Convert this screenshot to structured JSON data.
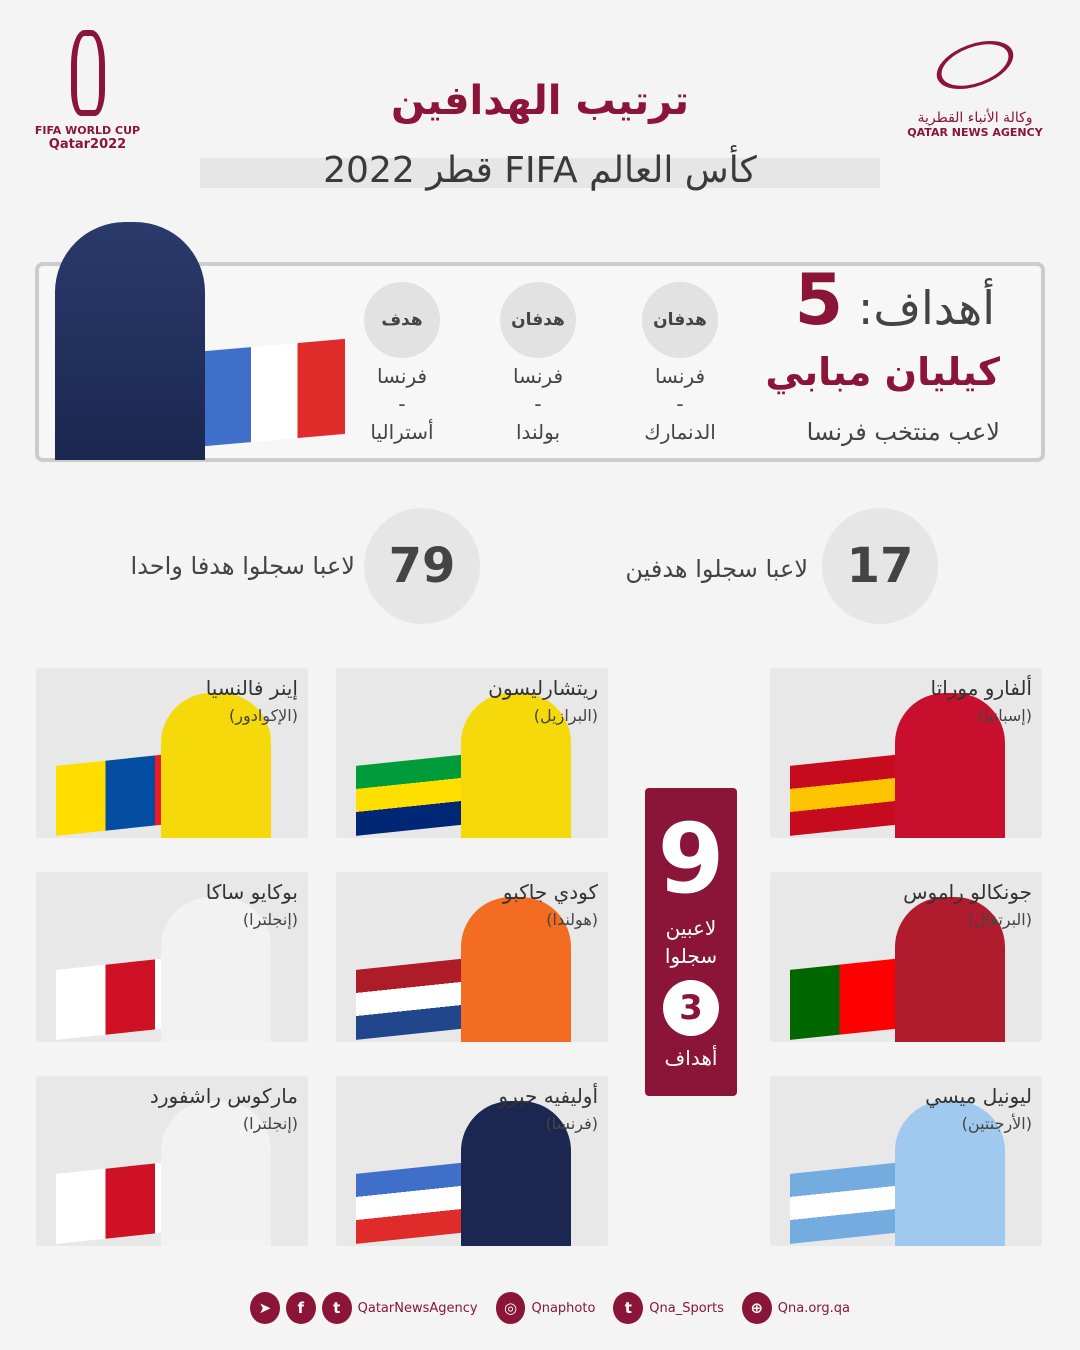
{
  "header": {
    "title": "ترتيب الهدافين",
    "subtitle": "كأس العالم FIFA قطر 2022"
  },
  "logos": {
    "fifa": {
      "line1": "FIFA WORLD CUP",
      "line2": "Qatar2022"
    },
    "qna": {
      "arabic": "وكالة الأنباء القطرية",
      "english": "QATAR NEWS AGENCY"
    }
  },
  "top_scorer": {
    "goals_prefix": "أهداف:",
    "goals": "5",
    "name": "كيليان مبابي",
    "team": "لاعب منتخب فرنسا",
    "matches": [
      {
        "goals": "هدفان",
        "team": "فرنسا",
        "sep": "-",
        "opponent": "الدنمارك"
      },
      {
        "goals": "هدفان",
        "team": "فرنسا",
        "sep": "-",
        "opponent": "بولندا"
      },
      {
        "goals": "هدف",
        "team": "فرنسا",
        "sep": "-",
        "opponent": "أستراليا"
      }
    ]
  },
  "stats": [
    {
      "value": "17",
      "label": "لاعبا سجلوا هدفين"
    },
    {
      "value": "79",
      "label": "لاعبا سجلوا هدفا واحدا"
    }
  ],
  "badge": {
    "count": "9",
    "line1": "لاعبين",
    "line2": "سجلوا",
    "goals": "3",
    "line3": "أهداف"
  },
  "players": [
    {
      "name": "ألفارو موراتا",
      "country": "(إسبانيا)",
      "flag_colors": [
        "#c60b1e",
        "#ffc400",
        "#c60b1e"
      ],
      "kit": "#c8102e"
    },
    {
      "name": "ريتشارليسون",
      "country": "(البرازيل)",
      "flag_colors": [
        "#009c3b",
        "#ffdf00",
        "#002776"
      ],
      "kit": "#f5d90a"
    },
    {
      "name": "إينر فالنسيا",
      "country": "(الإكوادور)",
      "flag_colors": [
        "#ffdd00",
        "#034ea2",
        "#ed1c24"
      ],
      "kit": "#f5d90a"
    },
    {
      "name": "جونكالو راموس",
      "country": "(البرتغال)",
      "flag_colors": [
        "#006600",
        "#ff0000",
        "#ff0000"
      ],
      "kit": "#b01c2e"
    },
    {
      "name": "كودي جاكبو",
      "country": "(هولندا)",
      "flag_colors": [
        "#ae1c28",
        "#ffffff",
        "#21468b"
      ],
      "kit": "#f36c21"
    },
    {
      "name": "بوكايو ساكا",
      "country": "(إنجلترا)",
      "flag_colors": [
        "#ffffff",
        "#ce1124",
        "#ffffff"
      ],
      "kit": "#f2f2f2"
    },
    {
      "name": "ليونيل ميسي",
      "country": "(الأرجنتين)",
      "flag_colors": [
        "#74acdf",
        "#ffffff",
        "#74acdf"
      ],
      "kit": "#9fc9ef"
    },
    {
      "name": "أوليفيه جيرو",
      "country": "(فرنسا)",
      "flag_colors": [
        "#3f6fc8",
        "#ffffff",
        "#e02b2b"
      ],
      "kit": "#1b2750"
    },
    {
      "name": "ماركوس راشفورد",
      "country": "(إنجلترا)",
      "flag_colors": [
        "#ffffff",
        "#ce1124",
        "#ffffff"
      ],
      "kit": "#f2f2f2"
    }
  ],
  "footer": {
    "handle1": "QatarNewsAgency",
    "handle2": "Qnaphoto",
    "handle3": "Qna_Sports",
    "website": "Qna.org.qa"
  },
  "colors": {
    "brand": "#8a1538",
    "background": "#f4f4f4"
  }
}
